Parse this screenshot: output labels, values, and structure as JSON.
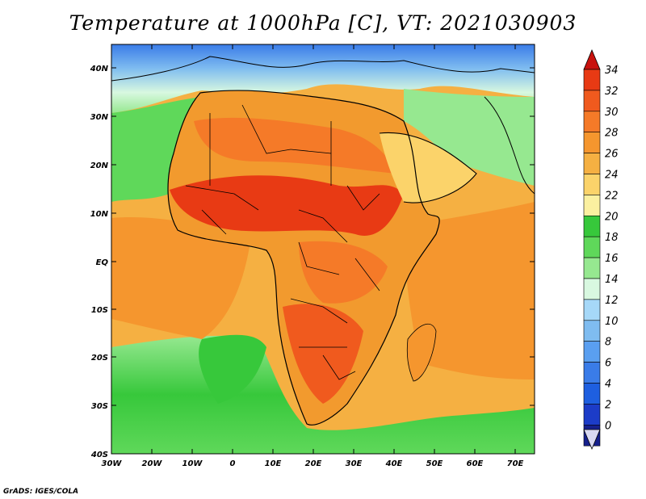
{
  "title": "Temperature at 1000hPa [C], VT: 2021030903",
  "credit": "GrADS: IGES/COLA",
  "map": {
    "lon_range": [
      -30,
      75
    ],
    "lat_range": [
      -40,
      45
    ],
    "lat_ticks": [
      "40N",
      "30N",
      "20N",
      "10N",
      "EQ",
      "10S",
      "20S",
      "30S",
      "40S"
    ],
    "lon_ticks": [
      "30W",
      "20W",
      "10W",
      "0",
      "10E",
      "20E",
      "30E",
      "40E",
      "50E",
      "60E",
      "70E"
    ],
    "ocean_color": "#f5b042",
    "land_color": "#f29a2e"
  },
  "colorbar": {
    "labels": [
      "34",
      "32",
      "30",
      "28",
      "26",
      "24",
      "22",
      "20",
      "18",
      "16",
      "14",
      "12",
      "10",
      "8",
      "6",
      "4",
      "2",
      "0"
    ],
    "colors": [
      "#e83a14",
      "#f05a1e",
      "#f57a28",
      "#f5962e",
      "#f5b042",
      "#fbd36a",
      "#fbf0a0",
      "#37c83b",
      "#5fd85a",
      "#96e890",
      "#d8f8e0",
      "#a6d8f8",
      "#7fbcf0",
      "#5a9ff0",
      "#3a7ce8",
      "#1e5fe0",
      "#1c3cc8",
      "#16208c"
    ],
    "low_arrow_color": "#d9d9f2",
    "high_arrow_color": "#c8120e"
  }
}
